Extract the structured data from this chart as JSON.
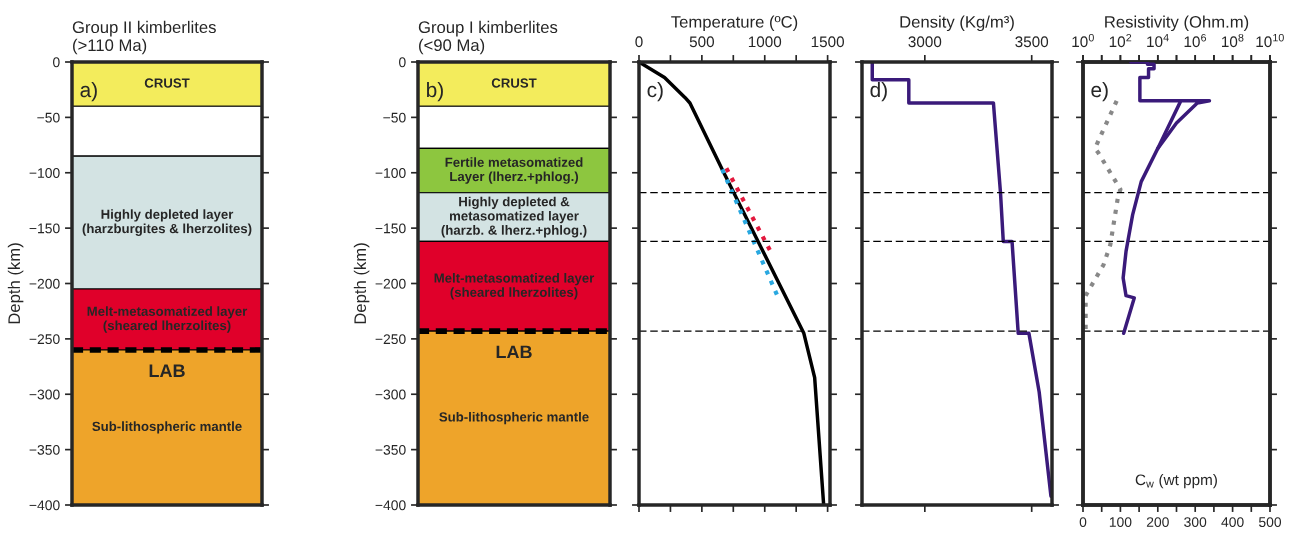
{
  "chart_data": [
    {
      "type": "bar",
      "stacked": true,
      "categories": [
        null
      ],
      "title": "Group II kimberlites\n(>110 Ma)",
      "ylabel": "Depth (km)",
      "ylim": [
        -400,
        0
      ],
      "yticks": [
        0,
        {
          "value": -50,
          "label": "−50"
        },
        {
          "value": -100,
          "label": "−100"
        },
        {
          "value": -150,
          "label": "−150"
        },
        {
          "value": -200,
          "label": "−200"
        },
        {
          "value": -250,
          "label": "−250"
        },
        {
          "value": -300,
          "label": "−300"
        },
        {
          "value": -350,
          "label": "−350"
        },
        {
          "value": -400,
          "label": "−400"
        }
      ],
      "series": [
        {
          "name": "CRUST",
          "color": "#f3ec5c",
          "values": [
            -40
          ]
        },
        {
          "color": "#ffffff",
          "values": [
            -45
          ]
        },
        {
          "name": "Highly depleted layer\n(harzburgites & lherzolites)",
          "color": "#d3e3e3",
          "values": [
            -120
          ]
        },
        {
          "name": "Melt-metasomatized layer\n(sheared lherzolites)",
          "color": "#e0002a",
          "values": [
            -55
          ]
        },
        {
          "name": "Sub-lithospheric mantle",
          "color": "#eea42a",
          "values": [
            -140
          ]
        }
      ],
      "ref_lines": [
        {
          "axis": "y",
          "value": -260,
          "label": "LAB",
          "color": "#000000",
          "line_style": "dashed"
        }
      ],
      "annotations": [
        "a)"
      ]
    },
    {
      "type": "bar",
      "stacked": true,
      "categories": [
        null
      ],
      "title": "Group I kimberlites\n(<90 Ma)",
      "ylabel": "Depth (km)",
      "ylim": [
        -400,
        0
      ],
      "yticks": [
        0,
        {
          "value": -50,
          "label": "−50"
        },
        {
          "value": -100,
          "label": "−100"
        },
        {
          "value": -150,
          "label": "−150"
        },
        {
          "value": -200,
          "label": "−200"
        },
        {
          "value": -250,
          "label": "−250"
        },
        {
          "value": -300,
          "label": "−300"
        },
        {
          "value": -350,
          "label": "−350"
        },
        {
          "value": -400,
          "label": "−400"
        }
      ],
      "series": [
        {
          "name": "CRUST",
          "color": "#f3ec5c",
          "values": [
            -40
          ]
        },
        {
          "color": "#ffffff",
          "values": [
            -38
          ]
        },
        {
          "name": "Fertile metasomatized\nLayer (lherz.+phlog.)",
          "color": "#8dc63f",
          "values": [
            -40
          ]
        },
        {
          "name": "Highly depleted &\nmetasomatized layer\n(harzb. & lherz.+phlog.)",
          "color": "#d3e3e3",
          "values": [
            -44
          ]
        },
        {
          "name": "Melt-metasomatized layer\n(sheared lherzolites)",
          "color": "#e0002a",
          "values": [
            -81
          ]
        },
        {
          "name": "Sub-lithospheric mantle",
          "color": "#eea42a",
          "values": [
            -157
          ]
        }
      ],
      "ref_lines": [
        {
          "axis": "y",
          "value": -243,
          "label": "LAB",
          "color": "#000000",
          "line_style": "dashed"
        }
      ],
      "annotations": [
        "b)"
      ]
    },
    {
      "type": "line",
      "xlabel": "Temperature (ºC)",
      "ylim": [
        -400,
        0
      ],
      "tick_labels": "x",
      "yticks": [
        {
          "value": 0,
          "label": null
        },
        {
          "value": -50,
          "label": null
        },
        {
          "value": -100,
          "label": null
        },
        {
          "value": -150,
          "label": null
        },
        {
          "value": -200,
          "label": null
        },
        {
          "value": -250,
          "label": null
        },
        {
          "value": -300,
          "label": null
        },
        {
          "value": -350,
          "label": null
        },
        {
          "value": -400,
          "label": null
        }
      ],
      "xlim": [
        0,
        1519
      ],
      "xticks": [
        0,
        {
          "value": 250,
          "label": null
        },
        500,
        {
          "value": 750,
          "label": null
        },
        1000,
        {
          "value": 1250,
          "label": null
        },
        1500
      ],
      "series": [
        {
          "color": "#000000",
          "line_style": "solid",
          "x": [
            0,
            203,
            365,
            405,
            662,
            1311,
            1397,
            1468
          ],
          "values": [
            0,
            -14,
            -32,
            -37,
            -97,
            -245,
            -285,
            -399
          ]
        },
        {
          "color": "#e3183d",
          "line_style": "dotted",
          "x": [
            695,
            1046
          ],
          "values": [
            -96,
            -171
          ]
        },
        {
          "color": "#29a8e0",
          "line_style": "dotted",
          "x": [
            662,
            1100
          ],
          "values": [
            -97,
            -211
          ]
        }
      ],
      "ref_lines": [
        {
          "axis": "y",
          "value": -118,
          "color": "#000000",
          "line_style": "dashed"
        },
        {
          "axis": "y",
          "value": -162,
          "color": "#000000",
          "line_style": "dashed"
        },
        {
          "axis": "y",
          "value": -243,
          "color": "#000000",
          "line_style": "dashed"
        }
      ],
      "annotations": [
        "c)"
      ]
    },
    {
      "type": "line",
      "xlabel": "Density (Kg/m³)",
      "ylim": [
        -400,
        0
      ],
      "tick_labels": "x",
      "yticks": [
        {
          "value": 0,
          "label": null
        },
        {
          "value": -50,
          "label": null
        },
        {
          "value": -100,
          "label": null
        },
        {
          "value": -150,
          "label": null
        },
        {
          "value": -200,
          "label": null
        },
        {
          "value": -250,
          "label": null
        },
        {
          "value": -300,
          "label": null
        },
        {
          "value": -350,
          "label": null
        },
        {
          "value": -400,
          "label": null
        }
      ],
      "xlim": [
        2706,
        3595
      ],
      "xticks": [
        3000,
        3500
      ],
      "series": [
        {
          "color": "#3a1a7a",
          "line_style": "solid",
          "x": [
            2754,
            2754,
            2925,
            2925,
            3321,
            3325,
            3354,
            3367,
            3408,
            3437,
            3487,
            3535,
            3590
          ],
          "values": [
            0,
            -16,
            -16,
            -37,
            -37,
            -47,
            -118,
            -162,
            -162,
            -245,
            -245,
            -298,
            -392
          ]
        }
      ],
      "ref_lines": [
        {
          "axis": "y",
          "value": -118,
          "color": "#000000",
          "line_style": "dashed"
        },
        {
          "axis": "y",
          "value": -162,
          "color": "#000000",
          "line_style": "dashed"
        },
        {
          "axis": "y",
          "value": -243,
          "color": "#000000",
          "line_style": "dashed"
        }
      ],
      "annotations": [
        "d)"
      ]
    },
    {
      "type": "line",
      "x2label": "Resistivity (Ohm.m)",
      "xlabel": "C$_{w}$ (wt ppm)",
      "ylim": [
        -400,
        0
      ],
      "tick_labels": "x",
      "log": "x2",
      "yticks": [
        {
          "value": 0,
          "label": null
        },
        {
          "value": -50,
          "label": null
        },
        {
          "value": -100,
          "label": null
        },
        {
          "value": -150,
          "label": null
        },
        {
          "value": -200,
          "label": null
        },
        {
          "value": -250,
          "label": null
        },
        {
          "value": -300,
          "label": null
        },
        {
          "value": -350,
          "label": null
        },
        {
          "value": -400,
          "label": null
        }
      ],
      "x2lim": [
        1,
        10000000000
      ],
      "x2ticks": [
        {
          "value": 1,
          "label": "10$^{0}$"
        },
        {
          "value": 10,
          "label": null
        },
        {
          "value": 100,
          "label": "10$^{2}$"
        },
        {
          "value": 1000,
          "label": null
        },
        {
          "value": 10000,
          "label": "10$^{4}$"
        },
        {
          "value": 100000,
          "label": null
        },
        {
          "value": 1000000,
          "label": "10$^{6}$"
        },
        {
          "value": 10000000,
          "label": null
        },
        {
          "value": 100000000,
          "label": "10$^{8}$"
        },
        {
          "value": 1000000000,
          "label": null
        },
        {
          "value": 10000000000,
          "label": "10$^{10}$"
        }
      ],
      "xlim": [
        0,
        500
      ],
      "xticks": [
        0,
        {
          "value": 50,
          "label": null
        },
        100,
        {
          "value": 150,
          "label": null
        },
        200,
        {
          "value": 250,
          "label": null
        },
        300,
        {
          "value": 350,
          "label": null
        },
        400,
        {
          "value": 450,
          "label": null
        },
        500
      ],
      "series": [
        {
          "axis": "x2",
          "color": "#3a1a7a",
          "line_style": "solid",
          "x": [
            360,
            2800,
            2800,
            6300,
            6300,
            3200,
            3200,
            1100,
            1100,
            5800000,
            1300000,
            100000,
            10000,
            1300,
            450,
            200,
            140,
            200,
            550,
            150
          ],
          "values": [
            0,
            0,
            -2,
            -2,
            -6,
            -6,
            -14,
            -14,
            -35,
            -35,
            -37,
            -55,
            -78,
            -108,
            -138,
            -171,
            -195,
            -211,
            -213,
            -245
          ]
        },
        {
          "axis": "x2",
          "color": "#3a1a7a",
          "line_style": "solid",
          "x": [
            160000,
            10000
          ],
          "values": [
            -36,
            -78
          ]
        },
        {
          "color": "#888888",
          "line_style": "dotted",
          "x": [
            90,
            32,
            41,
            100,
            93,
            73,
            55,
            7,
            7
          ],
          "values": [
            -35,
            -78,
            -82,
            -115,
            -123,
            -165,
            -183,
            -211,
            -245
          ]
        }
      ],
      "ref_lines": [
        {
          "axis": "y",
          "value": -118,
          "color": "#000000",
          "line_style": "dashed"
        },
        {
          "axis": "y",
          "value": -162,
          "color": "#000000",
          "line_style": "dashed"
        },
        {
          "axis": "y",
          "value": -243,
          "color": "#000000",
          "line_style": "dashed"
        }
      ],
      "annotations": [
        "e)"
      ]
    }
  ]
}
